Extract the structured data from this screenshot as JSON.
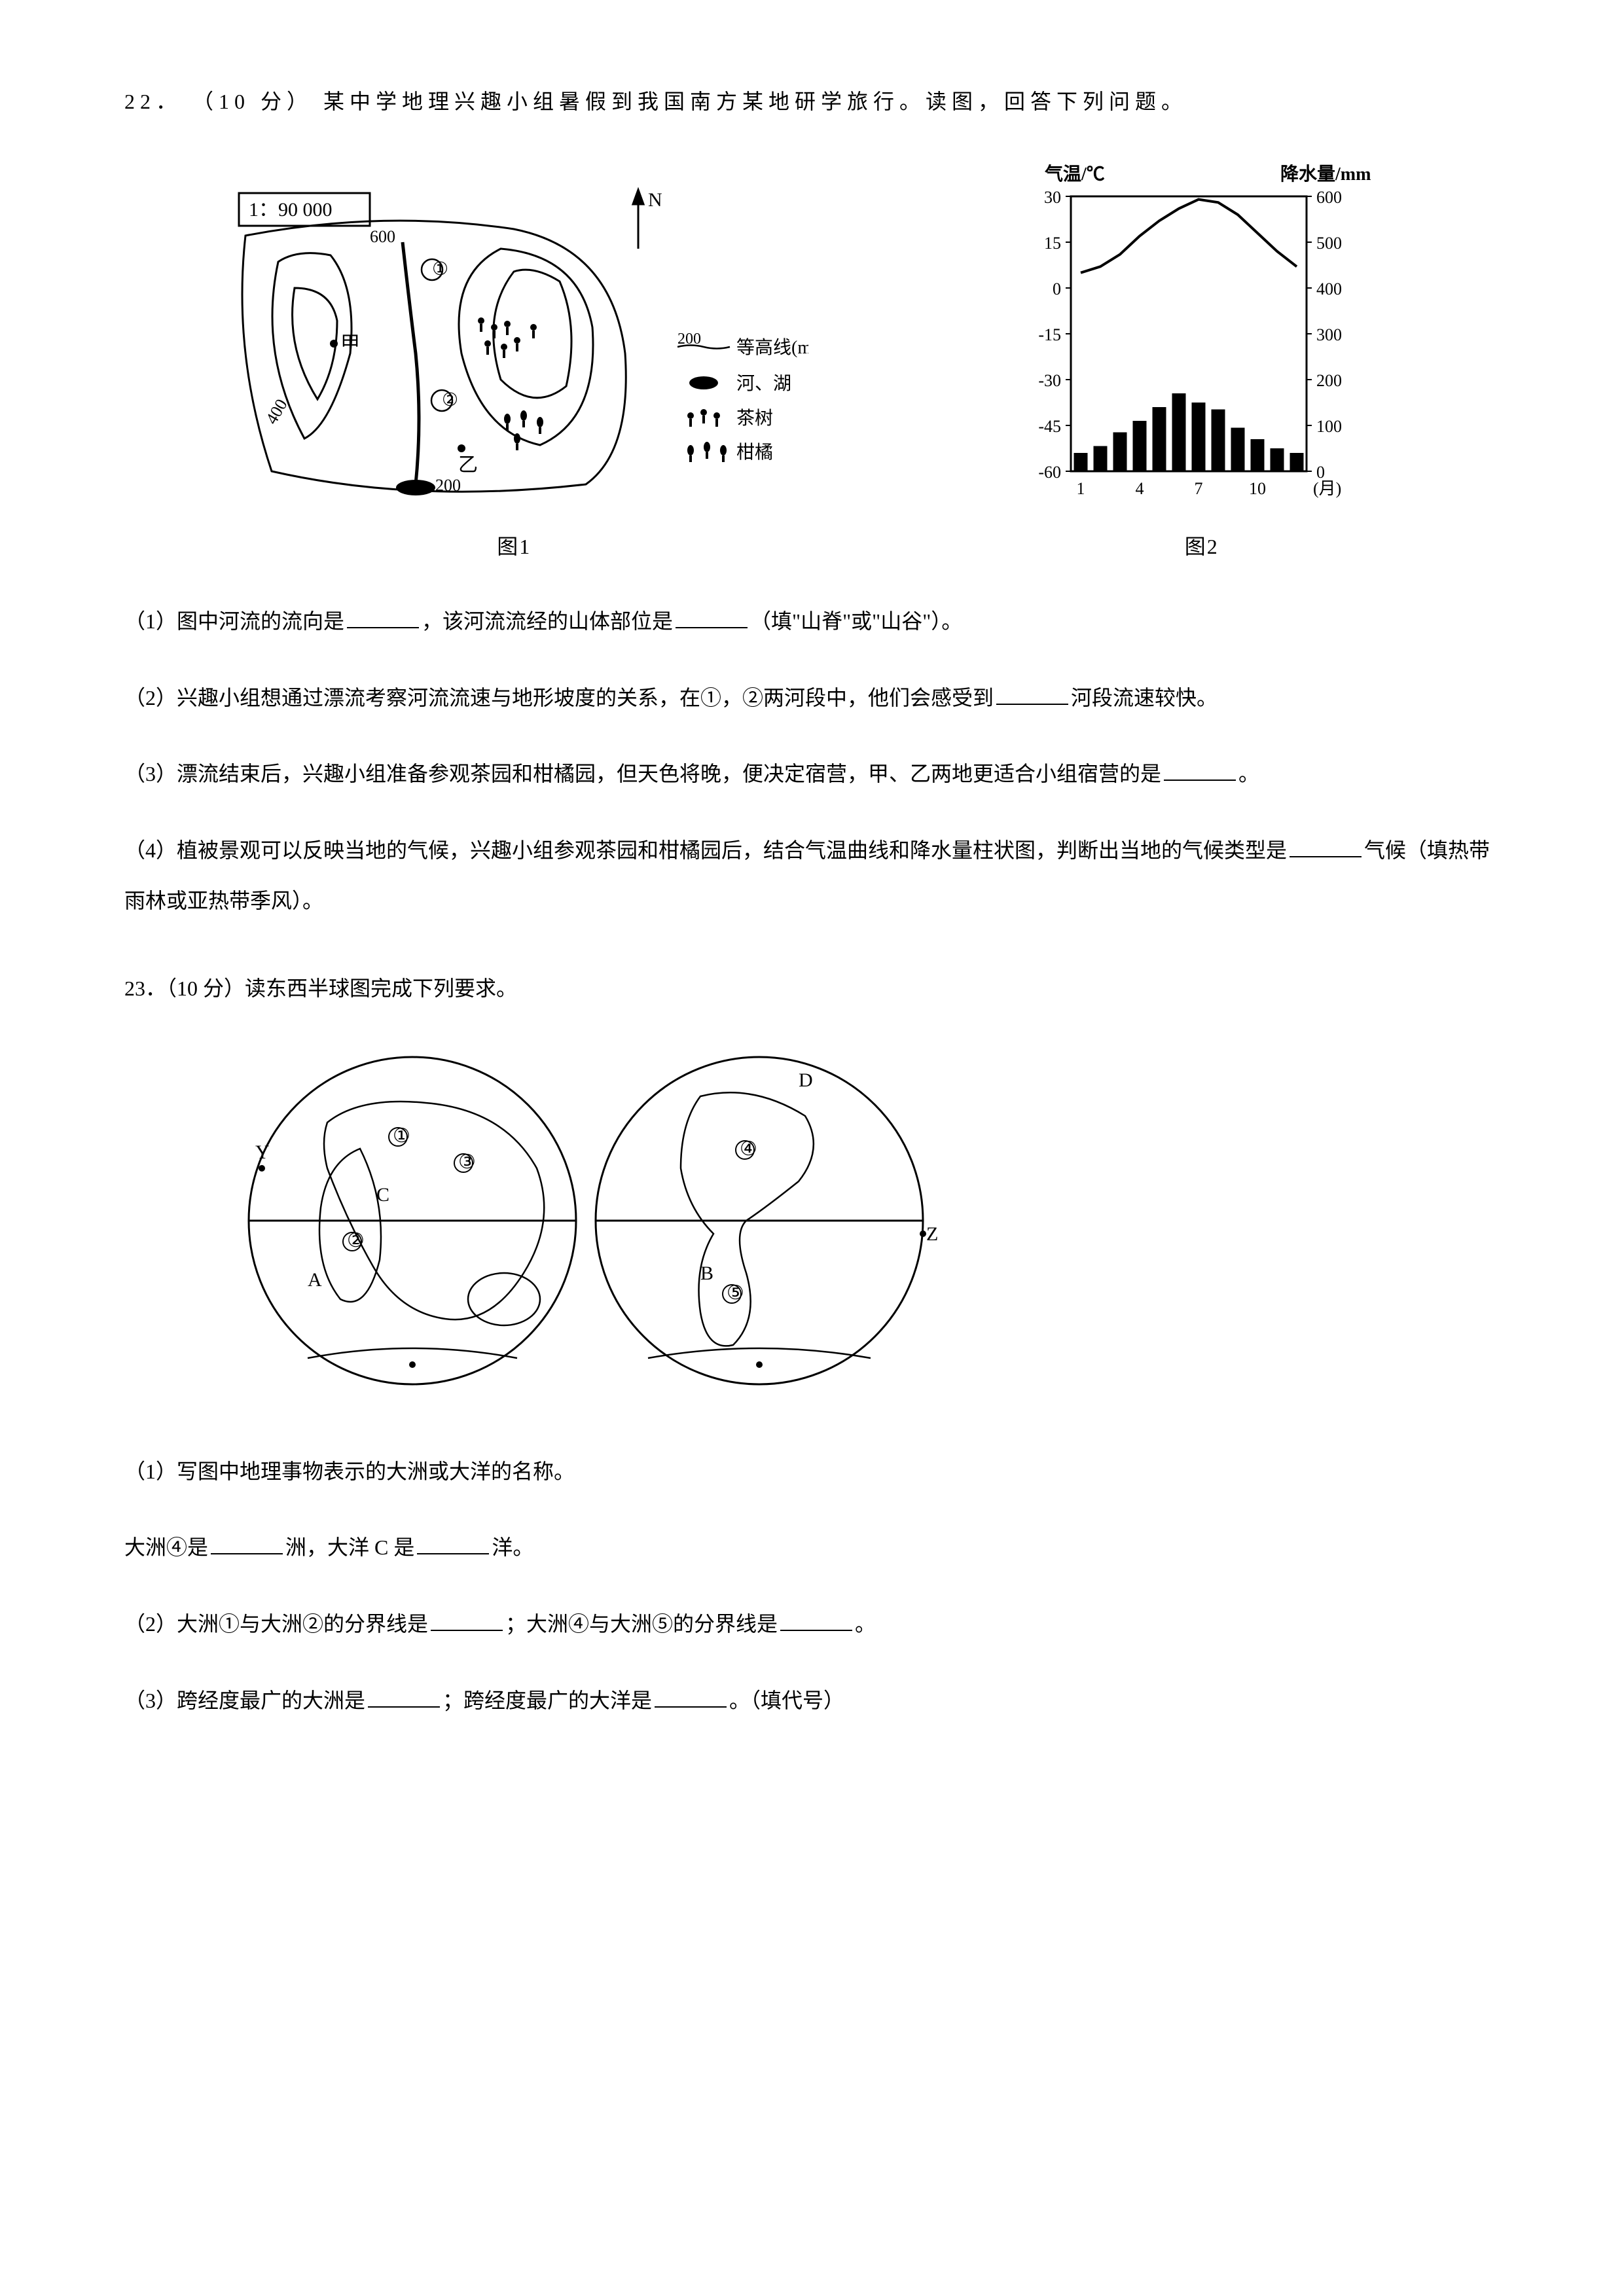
{
  "q22": {
    "number": "22",
    "points": "（10 分）",
    "stem": "某中学地理兴趣小组暑假到我国南方某地研学旅行。读图，回答下列问题。",
    "fig1": {
      "scale_text": "1：90 000",
      "contour_values": [
        "600",
        "400",
        "200",
        "200"
      ],
      "marker_jia": "甲",
      "marker_yi": "乙",
      "circle1": "①",
      "circle2": "②",
      "north": "N",
      "legend_contour": "等高线(m)",
      "legend_contour_val": "200",
      "legend_river": "河、湖",
      "legend_tea": "茶树",
      "legend_citrus": "柑橘",
      "caption": "图1",
      "line_color": "#000000",
      "fill_color": "#000000"
    },
    "fig2": {
      "title_left": "气温/℃",
      "title_right": "降水量/mm",
      "y_left_ticks": [
        "30",
        "15",
        "0",
        "-15",
        "-30",
        "-45",
        "-60"
      ],
      "y_right_ticks": [
        "600",
        "500",
        "400",
        "300",
        "200",
        "100",
        "0"
      ],
      "x_ticks": [
        "1",
        "4",
        "7",
        "10"
      ],
      "x_unit": "(月)",
      "precip_bars": [
        40,
        55,
        85,
        110,
        140,
        170,
        150,
        135,
        95,
        70,
        50,
        40
      ],
      "temp_points": [
        5,
        7,
        11,
        17,
        22,
        26,
        29,
        28,
        24,
        18,
        12,
        7
      ],
      "caption": "图2",
      "bar_color": "#000000",
      "line_color": "#000000",
      "axis_color": "#000000"
    },
    "sub1_a": "（1）图中河流的流向是",
    "sub1_b": "，该河流流经的山体部位是",
    "sub1_c": "（填\"山脊\"或\"山谷\"）。",
    "sub2_a": "（2）兴趣小组想通过漂流考察河流流速与地形坡度的关系，在①，②两河段中，他们会感受到",
    "sub2_b": "河段流速较快。",
    "sub3_a": "（3）漂流结束后，兴趣小组准备参观茶园和柑橘园，但天色将晚，便决定宿营，甲、乙两地更适合小组宿营的是",
    "sub3_b": "。",
    "sub4_a": "（4）植被景观可以反映当地的气候，兴趣小组参观茶园和柑橘园后，结合气温曲线和降水量柱状图，判断出当地的气候类型是",
    "sub4_b": "气候（填热带雨林或亚热带季风）。"
  },
  "q23": {
    "number": "23",
    "points": "（10 分）",
    "stem": "读东西半球图完成下列要求。",
    "labels": {
      "Y": "Y",
      "Z": "Z",
      "A": "A",
      "B": "B",
      "C": "C",
      "D": "D",
      "c1": "①",
      "c2": "②",
      "c3": "③",
      "c4": "④",
      "c5": "⑤"
    },
    "line_color": "#000000",
    "sub1": "（1）写图中地理事物表示的大洲或大洋的名称。",
    "sub1b_a": "大洲④是",
    "sub1b_b": "洲，大洋 C 是",
    "sub1b_c": "洋。",
    "sub2_a": "（2）大洲①与大洲②的分界线是",
    "sub2_b": "；大洲④与大洲⑤的分界线是",
    "sub2_c": "。",
    "sub3_a": "（3）跨经度最广的大洲是",
    "sub3_b": "；跨经度最广的大洋是",
    "sub3_c": "。（填代号）"
  }
}
